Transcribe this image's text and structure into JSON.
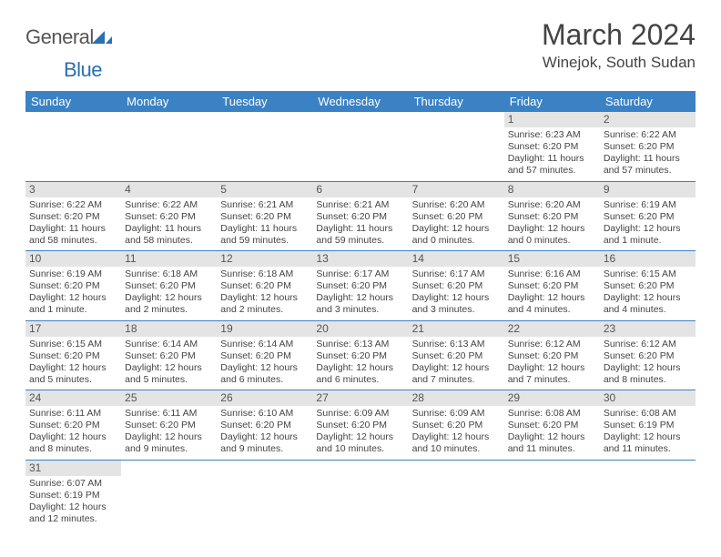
{
  "brand": {
    "general": "General",
    "blue": "Blue"
  },
  "title": "March 2024",
  "location": "Winejok, South Sudan",
  "day_headers": [
    "Sunday",
    "Monday",
    "Tuesday",
    "Wednesday",
    "Thursday",
    "Friday",
    "Saturday"
  ],
  "colors": {
    "header_bg": "#3b82c4",
    "header_text": "#ffffff",
    "daynum_bg": "#e4e4e4",
    "cell_border": "#3b82c4",
    "logo_blue": "#2b6fb0"
  },
  "weeks": [
    [
      null,
      null,
      null,
      null,
      null,
      {
        "n": "1",
        "sr": "Sunrise: 6:23 AM",
        "ss": "Sunset: 6:20 PM",
        "dl1": "Daylight: 11 hours",
        "dl2": "and 57 minutes."
      },
      {
        "n": "2",
        "sr": "Sunrise: 6:22 AM",
        "ss": "Sunset: 6:20 PM",
        "dl1": "Daylight: 11 hours",
        "dl2": "and 57 minutes."
      }
    ],
    [
      {
        "n": "3",
        "sr": "Sunrise: 6:22 AM",
        "ss": "Sunset: 6:20 PM",
        "dl1": "Daylight: 11 hours",
        "dl2": "and 58 minutes."
      },
      {
        "n": "4",
        "sr": "Sunrise: 6:22 AM",
        "ss": "Sunset: 6:20 PM",
        "dl1": "Daylight: 11 hours",
        "dl2": "and 58 minutes."
      },
      {
        "n": "5",
        "sr": "Sunrise: 6:21 AM",
        "ss": "Sunset: 6:20 PM",
        "dl1": "Daylight: 11 hours",
        "dl2": "and 59 minutes."
      },
      {
        "n": "6",
        "sr": "Sunrise: 6:21 AM",
        "ss": "Sunset: 6:20 PM",
        "dl1": "Daylight: 11 hours",
        "dl2": "and 59 minutes."
      },
      {
        "n": "7",
        "sr": "Sunrise: 6:20 AM",
        "ss": "Sunset: 6:20 PM",
        "dl1": "Daylight: 12 hours",
        "dl2": "and 0 minutes."
      },
      {
        "n": "8",
        "sr": "Sunrise: 6:20 AM",
        "ss": "Sunset: 6:20 PM",
        "dl1": "Daylight: 12 hours",
        "dl2": "and 0 minutes."
      },
      {
        "n": "9",
        "sr": "Sunrise: 6:19 AM",
        "ss": "Sunset: 6:20 PM",
        "dl1": "Daylight: 12 hours",
        "dl2": "and 1 minute."
      }
    ],
    [
      {
        "n": "10",
        "sr": "Sunrise: 6:19 AM",
        "ss": "Sunset: 6:20 PM",
        "dl1": "Daylight: 12 hours",
        "dl2": "and 1 minute."
      },
      {
        "n": "11",
        "sr": "Sunrise: 6:18 AM",
        "ss": "Sunset: 6:20 PM",
        "dl1": "Daylight: 12 hours",
        "dl2": "and 2 minutes."
      },
      {
        "n": "12",
        "sr": "Sunrise: 6:18 AM",
        "ss": "Sunset: 6:20 PM",
        "dl1": "Daylight: 12 hours",
        "dl2": "and 2 minutes."
      },
      {
        "n": "13",
        "sr": "Sunrise: 6:17 AM",
        "ss": "Sunset: 6:20 PM",
        "dl1": "Daylight: 12 hours",
        "dl2": "and 3 minutes."
      },
      {
        "n": "14",
        "sr": "Sunrise: 6:17 AM",
        "ss": "Sunset: 6:20 PM",
        "dl1": "Daylight: 12 hours",
        "dl2": "and 3 minutes."
      },
      {
        "n": "15",
        "sr": "Sunrise: 6:16 AM",
        "ss": "Sunset: 6:20 PM",
        "dl1": "Daylight: 12 hours",
        "dl2": "and 4 minutes."
      },
      {
        "n": "16",
        "sr": "Sunrise: 6:15 AM",
        "ss": "Sunset: 6:20 PM",
        "dl1": "Daylight: 12 hours",
        "dl2": "and 4 minutes."
      }
    ],
    [
      {
        "n": "17",
        "sr": "Sunrise: 6:15 AM",
        "ss": "Sunset: 6:20 PM",
        "dl1": "Daylight: 12 hours",
        "dl2": "and 5 minutes."
      },
      {
        "n": "18",
        "sr": "Sunrise: 6:14 AM",
        "ss": "Sunset: 6:20 PM",
        "dl1": "Daylight: 12 hours",
        "dl2": "and 5 minutes."
      },
      {
        "n": "19",
        "sr": "Sunrise: 6:14 AM",
        "ss": "Sunset: 6:20 PM",
        "dl1": "Daylight: 12 hours",
        "dl2": "and 6 minutes."
      },
      {
        "n": "20",
        "sr": "Sunrise: 6:13 AM",
        "ss": "Sunset: 6:20 PM",
        "dl1": "Daylight: 12 hours",
        "dl2": "and 6 minutes."
      },
      {
        "n": "21",
        "sr": "Sunrise: 6:13 AM",
        "ss": "Sunset: 6:20 PM",
        "dl1": "Daylight: 12 hours",
        "dl2": "and 7 minutes."
      },
      {
        "n": "22",
        "sr": "Sunrise: 6:12 AM",
        "ss": "Sunset: 6:20 PM",
        "dl1": "Daylight: 12 hours",
        "dl2": "and 7 minutes."
      },
      {
        "n": "23",
        "sr": "Sunrise: 6:12 AM",
        "ss": "Sunset: 6:20 PM",
        "dl1": "Daylight: 12 hours",
        "dl2": "and 8 minutes."
      }
    ],
    [
      {
        "n": "24",
        "sr": "Sunrise: 6:11 AM",
        "ss": "Sunset: 6:20 PM",
        "dl1": "Daylight: 12 hours",
        "dl2": "and 8 minutes."
      },
      {
        "n": "25",
        "sr": "Sunrise: 6:11 AM",
        "ss": "Sunset: 6:20 PM",
        "dl1": "Daylight: 12 hours",
        "dl2": "and 9 minutes."
      },
      {
        "n": "26",
        "sr": "Sunrise: 6:10 AM",
        "ss": "Sunset: 6:20 PM",
        "dl1": "Daylight: 12 hours",
        "dl2": "and 9 minutes."
      },
      {
        "n": "27",
        "sr": "Sunrise: 6:09 AM",
        "ss": "Sunset: 6:20 PM",
        "dl1": "Daylight: 12 hours",
        "dl2": "and 10 minutes."
      },
      {
        "n": "28",
        "sr": "Sunrise: 6:09 AM",
        "ss": "Sunset: 6:20 PM",
        "dl1": "Daylight: 12 hours",
        "dl2": "and 10 minutes."
      },
      {
        "n": "29",
        "sr": "Sunrise: 6:08 AM",
        "ss": "Sunset: 6:20 PM",
        "dl1": "Daylight: 12 hours",
        "dl2": "and 11 minutes."
      },
      {
        "n": "30",
        "sr": "Sunrise: 6:08 AM",
        "ss": "Sunset: 6:19 PM",
        "dl1": "Daylight: 12 hours",
        "dl2": "and 11 minutes."
      }
    ],
    [
      {
        "n": "31",
        "sr": "Sunrise: 6:07 AM",
        "ss": "Sunset: 6:19 PM",
        "dl1": "Daylight: 12 hours",
        "dl2": "and 12 minutes."
      },
      null,
      null,
      null,
      null,
      null,
      null
    ]
  ]
}
